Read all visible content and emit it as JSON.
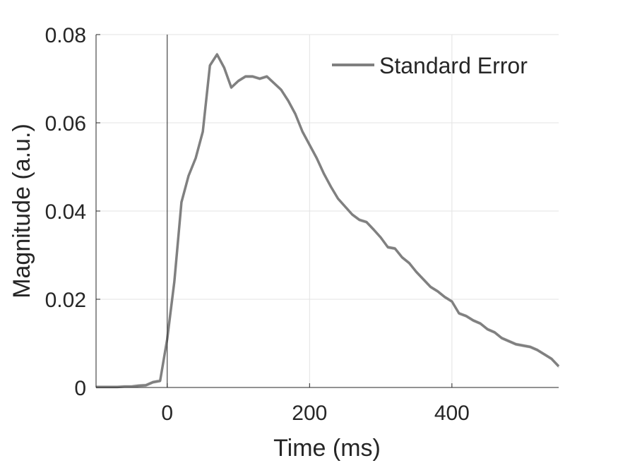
{
  "chart_data": {
    "type": "line",
    "title": "",
    "xlabel": "Time (ms)",
    "ylabel": "Magnitude (a.u.)",
    "xlim": [
      -100,
      550
    ],
    "ylim": [
      0,
      0.08
    ],
    "xticks": [
      0,
      200,
      400
    ],
    "xtick_labels": [
      "0",
      "200",
      "400"
    ],
    "yticks": [
      0,
      0.02,
      0.04,
      0.06,
      0.08
    ],
    "ytick_labels": [
      "0",
      "0.02",
      "0.04",
      "0.06",
      "0.08"
    ],
    "grid": true,
    "legend_position": "top-right",
    "reference_line_x": 0,
    "series": [
      {
        "name": "Standard Error",
        "color": "#808080",
        "band_color": "#c0c0c0",
        "band_halfwidth": 0.0003,
        "x": [
          -100,
          -90,
          -80,
          -70,
          -60,
          -50,
          -40,
          -30,
          -20,
          -10,
          0,
          10,
          20,
          30,
          40,
          50,
          60,
          70,
          80,
          90,
          100,
          110,
          120,
          130,
          140,
          150,
          160,
          170,
          180,
          190,
          200,
          210,
          220,
          230,
          240,
          250,
          260,
          270,
          280,
          290,
          300,
          310,
          320,
          330,
          340,
          350,
          360,
          370,
          380,
          390,
          400,
          410,
          420,
          430,
          440,
          450,
          460,
          470,
          480,
          490,
          500,
          510,
          520,
          530,
          540,
          550
        ],
        "y": [
          0.0001,
          0.0001,
          0.0001,
          0.0001,
          0.0002,
          0.0002,
          0.0004,
          0.0005,
          0.0012,
          0.0015,
          0.011,
          0.024,
          0.042,
          0.048,
          0.052,
          0.058,
          0.073,
          0.0755,
          0.0725,
          0.068,
          0.0695,
          0.0705,
          0.0705,
          0.07,
          0.0705,
          0.069,
          0.0675,
          0.065,
          0.062,
          0.058,
          0.055,
          0.052,
          0.0485,
          0.0455,
          0.0428,
          0.041,
          0.0392,
          0.038,
          0.0375,
          0.0358,
          0.034,
          0.0318,
          0.0315,
          0.0295,
          0.0282,
          0.0262,
          0.0245,
          0.0228,
          0.0218,
          0.0205,
          0.0195,
          0.0168,
          0.0162,
          0.0152,
          0.0145,
          0.0132,
          0.0125,
          0.0112,
          0.0105,
          0.0098,
          0.0095,
          0.0092,
          0.0085,
          0.0075,
          0.0065,
          0.0048
        ]
      }
    ]
  }
}
